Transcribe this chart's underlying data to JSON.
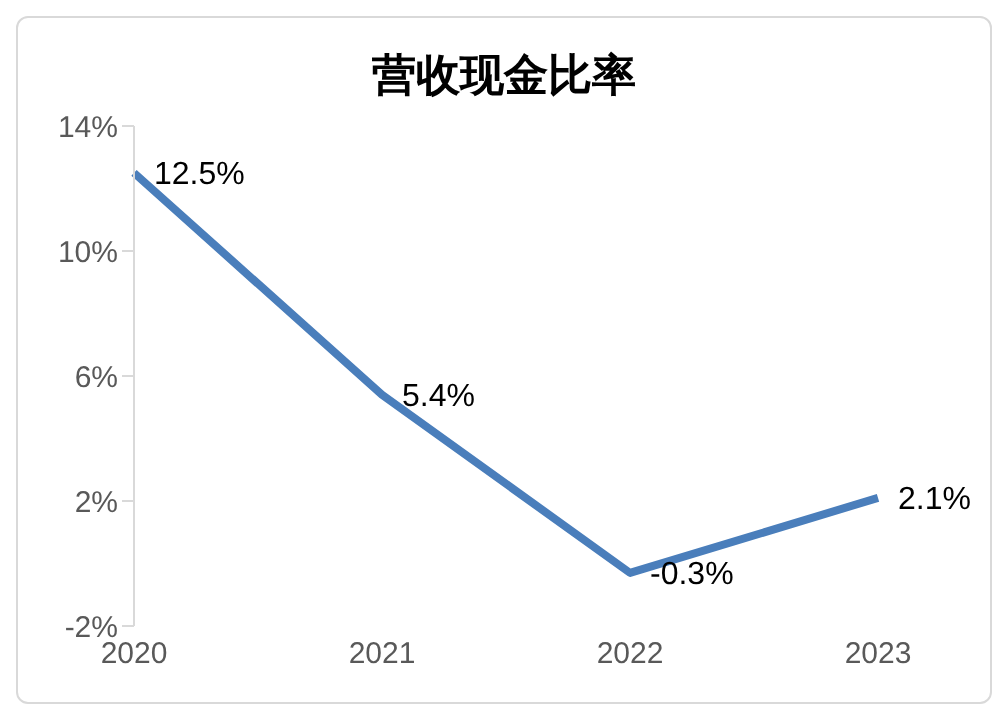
{
  "chart_data": {
    "type": "line",
    "title": "营收现金比率",
    "categories": [
      "2020",
      "2021",
      "2022",
      "2023"
    ],
    "series": [
      {
        "color": "#4a7ebb",
        "values": [
          12.5,
          5.4,
          -0.3,
          2.1
        ],
        "value_labels": [
          "12.5%",
          "5.4%",
          "-0.3%",
          "2.1%"
        ]
      }
    ],
    "ylim": [
      -2,
      14
    ],
    "yticks": [
      {
        "value": -2,
        "label": "-2%"
      },
      {
        "value": 2,
        "label": "2%"
      },
      {
        "value": 6,
        "label": "6%"
      },
      {
        "value": 10,
        "label": "10%"
      },
      {
        "value": 14,
        "label": "14%"
      }
    ],
    "marker": "none",
    "line_style": "solid"
  }
}
